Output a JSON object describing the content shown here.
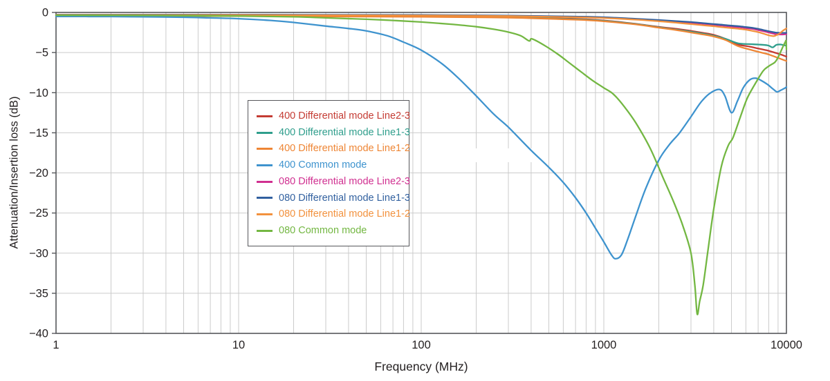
{
  "figure": {
    "xlabel": "Frequency (MHz)",
    "ylabel": "Attenuation/Insertion loss (dB)",
    "background_color": "#ffffff",
    "grid_color": "#cbcbcb",
    "axis_color": "#55565a",
    "text_color": "#231f20"
  },
  "chart_data": {
    "type": "line",
    "title": "",
    "xlabel": "Frequency (MHz)",
    "ylabel": "Attenuation/Insertion loss (dB)",
    "x_scale": "log",
    "xlim": [
      1,
      10000
    ],
    "ylim": [
      -40,
      0
    ],
    "x_tick_labels": [
      "1",
      "10",
      "100",
      "1000",
      "10000"
    ],
    "x_tick_values": [
      1,
      10,
      100,
      1000,
      10000
    ],
    "y_tick_values": [
      0,
      -5,
      -10,
      -15,
      -20,
      -25,
      -30,
      -35,
      -40
    ],
    "y_tick_labels": [
      "0",
      "−5",
      "−10",
      "−15",
      "−20",
      "−25",
      "−30",
      "−35",
      "−40"
    ],
    "grid": true,
    "legend_position": "upper-left-inside",
    "series": [
      {
        "name": "400 Differential mode Line2-3",
        "color": "#c43b33",
        "points": [
          [
            1,
            -0.4
          ],
          [
            3,
            -0.4
          ],
          [
            10,
            -0.42
          ],
          [
            30,
            -0.45
          ],
          [
            100,
            -0.5
          ],
          [
            200,
            -0.55
          ],
          [
            400,
            -0.65
          ],
          [
            700,
            -0.8
          ],
          [
            1000,
            -1.0
          ],
          [
            1400,
            -1.35
          ],
          [
            2000,
            -1.8
          ],
          [
            2500,
            -2.05
          ],
          [
            3000,
            -2.3
          ],
          [
            3500,
            -2.55
          ],
          [
            4000,
            -2.8
          ],
          [
            4650,
            -3.3
          ],
          [
            5430,
            -4.0
          ],
          [
            6250,
            -4.25
          ],
          [
            7000,
            -4.5
          ],
          [
            7900,
            -4.75
          ],
          [
            8600,
            -5.0
          ],
          [
            9200,
            -5.2
          ],
          [
            10000,
            -5.5
          ]
        ]
      },
      {
        "name": "400 Differential mode Line1-3",
        "color": "#2f9e8c",
        "points": [
          [
            1,
            -0.42
          ],
          [
            10,
            -0.44
          ],
          [
            100,
            -0.52
          ],
          [
            300,
            -0.62
          ],
          [
            700,
            -0.85
          ],
          [
            1000,
            -1.05
          ],
          [
            1500,
            -1.45
          ],
          [
            2000,
            -1.85
          ],
          [
            2500,
            -2.15
          ],
          [
            3000,
            -2.4
          ],
          [
            3500,
            -2.65
          ],
          [
            4000,
            -2.9
          ],
          [
            4650,
            -3.3
          ],
          [
            5430,
            -3.85
          ],
          [
            6250,
            -3.95
          ],
          [
            7000,
            -4.0
          ],
          [
            7900,
            -4.1
          ],
          [
            8400,
            -4.35
          ],
          [
            8800,
            -4.05
          ],
          [
            9300,
            -4.0
          ],
          [
            10000,
            -4.15
          ]
        ]
      },
      {
        "name": "400 Differential mode Line1-2",
        "color": "#ee8534",
        "points": [
          [
            1,
            -0.44
          ],
          [
            10,
            -0.46
          ],
          [
            100,
            -0.55
          ],
          [
            300,
            -0.65
          ],
          [
            700,
            -0.9
          ],
          [
            1000,
            -1.1
          ],
          [
            1500,
            -1.5
          ],
          [
            2000,
            -1.9
          ],
          [
            2500,
            -2.2
          ],
          [
            3000,
            -2.5
          ],
          [
            3500,
            -2.75
          ],
          [
            4000,
            -3.0
          ],
          [
            4650,
            -3.45
          ],
          [
            5430,
            -4.2
          ],
          [
            6250,
            -4.6
          ],
          [
            7000,
            -4.9
          ],
          [
            7900,
            -5.2
          ],
          [
            8600,
            -5.5
          ],
          [
            9200,
            -5.75
          ],
          [
            10000,
            -6.05
          ]
        ]
      },
      {
        "name": "400 Common mode",
        "color": "#3e93ce",
        "points": [
          [
            1,
            -0.5
          ],
          [
            2,
            -0.52
          ],
          [
            3,
            -0.55
          ],
          [
            5,
            -0.6
          ],
          [
            7,
            -0.68
          ],
          [
            10,
            -0.78
          ],
          [
            15,
            -1.0
          ],
          [
            20,
            -1.25
          ],
          [
            30,
            -1.7
          ],
          [
            40,
            -2.0
          ],
          [
            50,
            -2.3
          ],
          [
            65,
            -2.9
          ],
          [
            80,
            -3.7
          ],
          [
            100,
            -4.7
          ],
          [
            130,
            -6.4
          ],
          [
            160,
            -8.2
          ],
          [
            200,
            -10.4
          ],
          [
            250,
            -12.7
          ],
          [
            300,
            -14.3
          ],
          [
            400,
            -17.2
          ],
          [
            500,
            -19.3
          ],
          [
            600,
            -21.2
          ],
          [
            700,
            -23.1
          ],
          [
            800,
            -25.0
          ],
          [
            900,
            -26.9
          ],
          [
            1000,
            -28.6
          ],
          [
            1100,
            -30.2
          ],
          [
            1160,
            -30.7
          ],
          [
            1250,
            -30.2
          ],
          [
            1350,
            -28.3
          ],
          [
            1500,
            -25.3
          ],
          [
            1700,
            -21.9
          ],
          [
            2000,
            -18.4
          ],
          [
            2300,
            -16.4
          ],
          [
            2600,
            -15.0
          ],
          [
            3000,
            -13.0
          ],
          [
            3400,
            -11.2
          ],
          [
            3800,
            -10.1
          ],
          [
            4300,
            -9.6
          ],
          [
            4600,
            -10.4
          ],
          [
            5000,
            -12.5
          ],
          [
            5400,
            -11.0
          ],
          [
            5800,
            -9.4
          ],
          [
            6300,
            -8.4
          ],
          [
            6800,
            -8.2
          ],
          [
            7300,
            -8.5
          ],
          [
            7900,
            -9.0
          ],
          [
            8500,
            -9.6
          ],
          [
            8900,
            -9.9
          ],
          [
            9300,
            -9.7
          ],
          [
            9700,
            -9.5
          ],
          [
            10000,
            -9.3
          ]
        ]
      },
      {
        "name": "080 Differential mode Line2-3",
        "color": "#d02f90",
        "points": [
          [
            1,
            -0.3
          ],
          [
            10,
            -0.3
          ],
          [
            100,
            -0.35
          ],
          [
            300,
            -0.42
          ],
          [
            700,
            -0.55
          ],
          [
            1000,
            -0.65
          ],
          [
            1500,
            -0.85
          ],
          [
            2000,
            -1.0
          ],
          [
            2500,
            -1.15
          ],
          [
            3000,
            -1.28
          ],
          [
            3500,
            -1.42
          ],
          [
            4000,
            -1.55
          ],
          [
            4500,
            -1.65
          ],
          [
            5000,
            -1.78
          ],
          [
            5500,
            -1.85
          ],
          [
            6000,
            -1.95
          ],
          [
            6500,
            -2.05
          ],
          [
            7000,
            -2.2
          ],
          [
            7500,
            -2.35
          ],
          [
            8000,
            -2.5
          ],
          [
            8700,
            -2.7
          ],
          [
            9300,
            -2.75
          ],
          [
            10000,
            -2.7
          ]
        ]
      },
      {
        "name": "080 Differential mode Line1-3",
        "color": "#31609f",
        "points": [
          [
            1,
            -0.28
          ],
          [
            10,
            -0.28
          ],
          [
            100,
            -0.32
          ],
          [
            300,
            -0.4
          ],
          [
            700,
            -0.52
          ],
          [
            1000,
            -0.6
          ],
          [
            1500,
            -0.8
          ],
          [
            2000,
            -0.95
          ],
          [
            2500,
            -1.08
          ],
          [
            3000,
            -1.2
          ],
          [
            3500,
            -1.33
          ],
          [
            4000,
            -1.45
          ],
          [
            4500,
            -1.55
          ],
          [
            5000,
            -1.65
          ],
          [
            5500,
            -1.72
          ],
          [
            6000,
            -1.82
          ],
          [
            6500,
            -1.92
          ],
          [
            7000,
            -2.05
          ],
          [
            7500,
            -2.2
          ],
          [
            8000,
            -2.35
          ],
          [
            8700,
            -2.5
          ],
          [
            9300,
            -2.55
          ],
          [
            10000,
            -2.55
          ]
        ]
      },
      {
        "name": "080 Differential mode Line1-2",
        "color": "#f2913d",
        "points": [
          [
            1,
            -0.32
          ],
          [
            10,
            -0.33
          ],
          [
            100,
            -0.38
          ],
          [
            300,
            -0.46
          ],
          [
            700,
            -0.6
          ],
          [
            1000,
            -0.7
          ],
          [
            1500,
            -0.9
          ],
          [
            2000,
            -1.1
          ],
          [
            2500,
            -1.28
          ],
          [
            3000,
            -1.45
          ],
          [
            3500,
            -1.6
          ],
          [
            4000,
            -1.72
          ],
          [
            4500,
            -1.85
          ],
          [
            5000,
            -1.95
          ],
          [
            5500,
            -2.05
          ],
          [
            6000,
            -2.15
          ],
          [
            6500,
            -2.3
          ],
          [
            7000,
            -2.45
          ],
          [
            7500,
            -2.65
          ],
          [
            8000,
            -2.85
          ],
          [
            8500,
            -2.95
          ],
          [
            8800,
            -2.85
          ],
          [
            9200,
            -2.6
          ],
          [
            9600,
            -2.25
          ],
          [
            10000,
            -2.0
          ]
        ]
      },
      {
        "name": "080 Common mode",
        "color": "#73b742",
        "points": [
          [
            1,
            -0.35
          ],
          [
            3,
            -0.38
          ],
          [
            10,
            -0.45
          ],
          [
            20,
            -0.55
          ],
          [
            30,
            -0.68
          ],
          [
            50,
            -0.85
          ],
          [
            70,
            -1.0
          ],
          [
            100,
            -1.2
          ],
          [
            150,
            -1.5
          ],
          [
            200,
            -1.78
          ],
          [
            250,
            -2.1
          ],
          [
            300,
            -2.45
          ],
          [
            350,
            -2.9
          ],
          [
            390,
            -3.55
          ],
          [
            405,
            -3.3
          ],
          [
            480,
            -4.2
          ],
          [
            560,
            -5.2
          ],
          [
            640,
            -6.2
          ],
          [
            750,
            -7.4
          ],
          [
            870,
            -8.5
          ],
          [
            1000,
            -9.4
          ],
          [
            1130,
            -10.2
          ],
          [
            1300,
            -11.8
          ],
          [
            1500,
            -13.8
          ],
          [
            1800,
            -17.0
          ],
          [
            2100,
            -20.5
          ],
          [
            2400,
            -23.5
          ],
          [
            2700,
            -26.5
          ],
          [
            3000,
            -30.0
          ],
          [
            3150,
            -34.0
          ],
          [
            3245,
            -37.6
          ],
          [
            3350,
            -36.0
          ],
          [
            3500,
            -34.0
          ],
          [
            3700,
            -30.0
          ],
          [
            4000,
            -24.5
          ],
          [
            4400,
            -19.2
          ],
          [
            4800,
            -16.6
          ],
          [
            5100,
            -15.6
          ],
          [
            5600,
            -13.0
          ],
          [
            6100,
            -10.7
          ],
          [
            6700,
            -9.0
          ],
          [
            7450,
            -7.3
          ],
          [
            8000,
            -6.7
          ],
          [
            8650,
            -6.2
          ],
          [
            9000,
            -5.6
          ],
          [
            9300,
            -4.9
          ],
          [
            9600,
            -4.2
          ],
          [
            9850,
            -3.7
          ],
          [
            9950,
            -3.55
          ],
          [
            10000,
            -4.6
          ]
        ]
      }
    ]
  }
}
